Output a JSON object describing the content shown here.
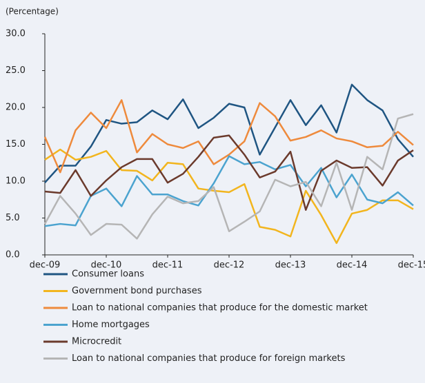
{
  "chart_data": {
    "type": "line",
    "y_label": "(Percentage)",
    "categories": [
      "dec-09",
      null,
      null,
      null,
      "dec-10",
      null,
      null,
      null,
      "dec-11",
      null,
      null,
      null,
      "dec-12",
      null,
      null,
      null,
      "dec-13",
      null,
      null,
      null,
      "dec-14",
      null,
      null,
      null,
      "dec-15"
    ],
    "ylim": [
      0,
      30
    ],
    "yticks": [
      {
        "value": 0,
        "label": "0.0"
      },
      {
        "value": 5,
        "label": "5.0"
      },
      {
        "value": 10,
        "label": "10.0"
      },
      {
        "value": 15,
        "label": "15.0"
      },
      {
        "value": 20,
        "label": "20.0"
      },
      {
        "value": 25,
        "label": "25.0"
      },
      {
        "value": 30,
        "label": "30.0"
      }
    ],
    "grid": false,
    "series": [
      {
        "name": "Consumer loans",
        "color": "#1f5582",
        "values": [
          9.8,
          12.1,
          12.1,
          14.7,
          18.3,
          17.8,
          18.0,
          19.6,
          18.4,
          21.1,
          17.2,
          18.6,
          20.5,
          20.0,
          13.6,
          17.3,
          21.0,
          17.6,
          20.3,
          16.6,
          23.1,
          21.0,
          19.6,
          15.7,
          13.3
        ]
      },
      {
        "name": "Government bond purchases",
        "color": "#f2b51e",
        "values": [
          12.9,
          14.3,
          12.9,
          13.3,
          14.1,
          11.5,
          11.4,
          10.1,
          12.5,
          12.3,
          9.0,
          8.7,
          8.5,
          9.6,
          3.8,
          3.4,
          2.5,
          8.7,
          5.4,
          1.6,
          5.6,
          6.1,
          7.4,
          7.4,
          6.2
        ]
      },
      {
        "name": "Loan to national companies that produce for the domestic market",
        "color": "#ee8a3c",
        "values": [
          16.0,
          11.2,
          16.9,
          19.3,
          17.2,
          21.0,
          13.9,
          16.4,
          15.0,
          14.5,
          15.4,
          12.3,
          13.6,
          15.4,
          20.6,
          18.8,
          15.5,
          16.0,
          16.9,
          15.8,
          15.4,
          14.6,
          14.8,
          16.7,
          14.9
        ]
      },
      {
        "name": "Home mortgages",
        "color": "#4ba3cf",
        "values": [
          3.9,
          4.2,
          4.0,
          8.0,
          9.0,
          6.6,
          10.7,
          8.2,
          8.2,
          7.3,
          6.7,
          9.7,
          13.4,
          12.3,
          12.6,
          11.6,
          12.2,
          9.3,
          11.8,
          7.8,
          10.9,
          7.5,
          7.0,
          8.5,
          6.7
        ]
      },
      {
        "name": "Microcredit",
        "color": "#6b3a2c",
        "values": [
          8.6,
          8.4,
          11.5,
          8.0,
          10.1,
          11.9,
          13.0,
          13.0,
          9.8,
          11.0,
          13.3,
          15.9,
          16.2,
          13.6,
          10.5,
          11.3,
          14.0,
          6.1,
          11.4,
          12.8,
          11.8,
          11.9,
          9.4,
          12.8,
          14.2
        ]
      },
      {
        "name": "Loan to national companies that produce for foreign markets",
        "color": "#b5b5b5",
        "values": [
          4.2,
          8.0,
          5.6,
          2.7,
          4.2,
          4.1,
          2.2,
          5.5,
          7.9,
          7.0,
          7.3,
          9.2,
          3.2,
          4.5,
          5.9,
          10.2,
          9.3,
          9.9,
          6.6,
          12.5,
          6.1,
          13.3,
          11.6,
          18.5,
          19.1
        ]
      }
    ]
  }
}
